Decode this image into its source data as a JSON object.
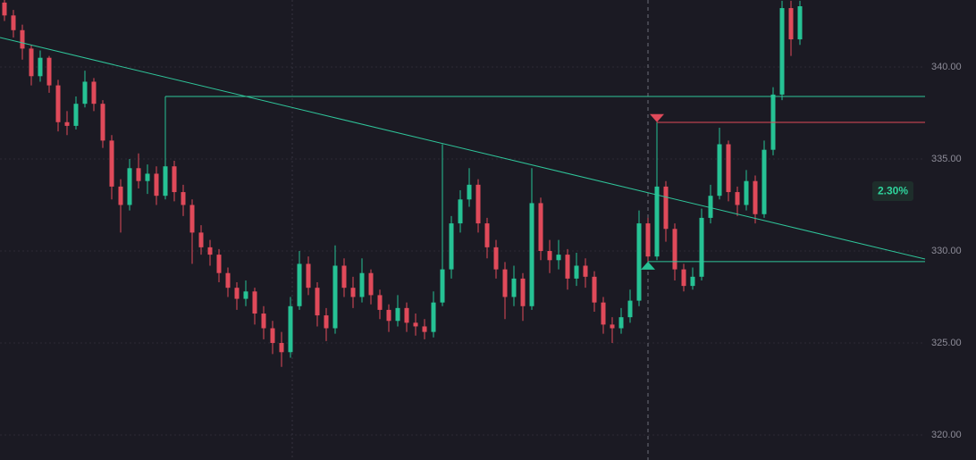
{
  "chart_data": {
    "type": "candlestick",
    "colors": {
      "up": "#26c294",
      "down": "#e04a5a"
    },
    "ylim": [
      318.64,
      343.64
    ],
    "yticks": [
      {
        "value": 320,
        "label": "320.00"
      },
      {
        "value": 325,
        "label": "325.00"
      },
      {
        "value": 330,
        "label": "330.00"
      },
      {
        "value": 335,
        "label": "335.00"
      },
      {
        "value": 340,
        "label": "340.00"
      }
    ],
    "grid": true,
    "candles": [
      [
        343.5,
        343.9,
        342.5,
        342.8
      ],
      [
        342.8,
        343.1,
        341.6,
        342.0
      ],
      [
        342.0,
        342.3,
        340.4,
        341.0
      ],
      [
        341.0,
        341.2,
        339.0,
        339.5
      ],
      [
        339.5,
        340.9,
        339.2,
        340.5
      ],
      [
        340.5,
        340.6,
        338.6,
        339.0
      ],
      [
        339.0,
        339.3,
        336.5,
        337.0
      ],
      [
        337.0,
        337.6,
        336.3,
        336.8
      ],
      [
        336.8,
        338.4,
        336.6,
        338.0
      ],
      [
        338.0,
        339.8,
        337.8,
        339.2
      ],
      [
        339.2,
        339.4,
        337.6,
        338.0
      ],
      [
        338.0,
        338.2,
        335.6,
        336.0
      ],
      [
        336.0,
        336.3,
        332.8,
        333.5
      ],
      [
        333.5,
        333.9,
        331.0,
        332.5
      ],
      [
        332.5,
        335.0,
        332.2,
        334.5
      ],
      [
        334.5,
        335.3,
        333.4,
        333.8
      ],
      [
        333.8,
        334.7,
        333.1,
        334.2
      ],
      [
        334.2,
        334.6,
        332.5,
        333.0
      ],
      [
        333.0,
        338.4,
        332.8,
        334.6
      ],
      [
        334.6,
        334.9,
        332.7,
        333.2
      ],
      [
        333.2,
        333.6,
        331.9,
        332.5
      ],
      [
        332.5,
        332.8,
        329.3,
        331.0
      ],
      [
        331.0,
        331.4,
        329.8,
        330.2
      ],
      [
        330.2,
        330.6,
        329.2,
        329.8
      ],
      [
        329.8,
        330.1,
        328.3,
        328.8
      ],
      [
        328.8,
        329.1,
        327.5,
        328.0
      ],
      [
        328.0,
        328.3,
        326.8,
        327.4
      ],
      [
        327.4,
        328.4,
        327.0,
        327.8
      ],
      [
        327.8,
        328.0,
        326.0,
        326.6
      ],
      [
        326.6,
        327.0,
        325.2,
        325.8
      ],
      [
        325.8,
        326.2,
        324.4,
        325.0
      ],
      [
        325.0,
        325.6,
        323.7,
        324.5
      ],
      [
        324.5,
        327.5,
        324.2,
        327.0
      ],
      [
        327.0,
        330.0,
        326.8,
        329.3
      ],
      [
        329.3,
        329.7,
        327.6,
        328.0
      ],
      [
        328.0,
        328.3,
        325.9,
        326.5
      ],
      [
        326.5,
        326.9,
        325.1,
        325.8
      ],
      [
        325.8,
        330.3,
        325.5,
        329.2
      ],
      [
        329.2,
        329.6,
        327.5,
        328.0
      ],
      [
        328.0,
        328.6,
        326.9,
        327.5
      ],
      [
        327.5,
        329.6,
        327.2,
        328.8
      ],
      [
        328.8,
        329.0,
        327.1,
        327.6
      ],
      [
        327.6,
        327.9,
        326.3,
        326.8
      ],
      [
        326.8,
        327.1,
        325.6,
        326.2
      ],
      [
        326.2,
        327.6,
        325.9,
        326.9
      ],
      [
        326.9,
        327.2,
        325.6,
        326.1
      ],
      [
        326.1,
        326.6,
        325.4,
        325.9
      ],
      [
        325.9,
        326.3,
        325.2,
        325.6
      ],
      [
        325.6,
        327.8,
        325.3,
        327.2
      ],
      [
        327.2,
        335.8,
        327.0,
        329.0
      ],
      [
        329.0,
        331.9,
        328.5,
        331.5
      ],
      [
        331.5,
        333.3,
        331.0,
        332.8
      ],
      [
        332.8,
        334.5,
        332.4,
        333.6
      ],
      [
        333.6,
        333.9,
        331.0,
        331.5
      ],
      [
        331.5,
        331.8,
        329.6,
        330.2
      ],
      [
        330.2,
        330.6,
        328.5,
        329.0
      ],
      [
        329.0,
        329.4,
        326.3,
        327.5
      ],
      [
        327.5,
        329.2,
        327.0,
        328.5
      ],
      [
        328.5,
        328.8,
        326.2,
        327.0
      ],
      [
        327.0,
        334.5,
        326.8,
        332.6
      ],
      [
        332.6,
        332.9,
        329.5,
        330.0
      ],
      [
        330.0,
        330.6,
        328.8,
        329.5
      ],
      [
        329.5,
        330.6,
        329.0,
        329.8
      ],
      [
        329.8,
        330.1,
        327.9,
        328.5
      ],
      [
        328.5,
        329.9,
        328.1,
        329.2
      ],
      [
        329.2,
        329.6,
        328.0,
        328.6
      ],
      [
        328.6,
        328.9,
        326.7,
        327.2
      ],
      [
        327.2,
        327.5,
        325.5,
        326.0
      ],
      [
        326.0,
        326.4,
        325.0,
        325.8
      ],
      [
        325.8,
        326.9,
        325.5,
        326.4
      ],
      [
        326.4,
        327.9,
        326.1,
        327.3
      ],
      [
        327.3,
        332.2,
        327.0,
        331.5
      ],
      [
        331.5,
        331.8,
        329.3,
        329.7
      ],
      [
        329.7,
        337.0,
        329.5,
        333.5
      ],
      [
        333.5,
        333.8,
        330.5,
        331.2
      ],
      [
        331.2,
        331.5,
        328.4,
        329.0
      ],
      [
        329.0,
        329.3,
        327.8,
        328.1
      ],
      [
        328.1,
        329.1,
        327.9,
        328.6
      ],
      [
        328.6,
        332.3,
        328.4,
        331.8
      ],
      [
        331.8,
        333.6,
        331.5,
        333.0
      ],
      [
        333.0,
        336.7,
        332.8,
        335.8
      ],
      [
        335.8,
        336.0,
        332.7,
        333.2
      ],
      [
        333.2,
        333.5,
        331.9,
        332.5
      ],
      [
        332.5,
        334.4,
        332.2,
        333.8
      ],
      [
        333.8,
        334.1,
        331.5,
        332.0
      ],
      [
        332.0,
        336.0,
        331.8,
        335.5
      ],
      [
        335.5,
        338.9,
        335.2,
        338.5
      ],
      [
        338.5,
        343.6,
        338.2,
        343.2
      ],
      [
        343.2,
        343.6,
        340.6,
        341.5
      ],
      [
        341.5,
        343.6,
        341.2,
        343.3
      ]
    ],
    "lines": [
      {
        "kind": "trend",
        "color": "#2fc59a",
        "start": {
          "index": -0.5,
          "value": 341.6
        },
        "end": {
          "index": 103,
          "value": 329.56
        }
      },
      {
        "kind": "horizontal",
        "color": "#2fc59a",
        "start_index": 18,
        "value": 338.4
      },
      {
        "kind": "horizontal",
        "color": "#e04a5a",
        "start_index": 73,
        "value": 336.99
      },
      {
        "kind": "horizontal",
        "color": "#2fc59a",
        "start_index": 72,
        "value": 329.42
      }
    ],
    "markers": [
      {
        "index": 73,
        "value": 337.0,
        "direction": "down",
        "color": "#e04a5a"
      },
      {
        "index": 72,
        "value": 329.42,
        "direction": "up",
        "color": "#26c294"
      }
    ],
    "cursor_index": 72,
    "annotation": "2.30%"
  }
}
